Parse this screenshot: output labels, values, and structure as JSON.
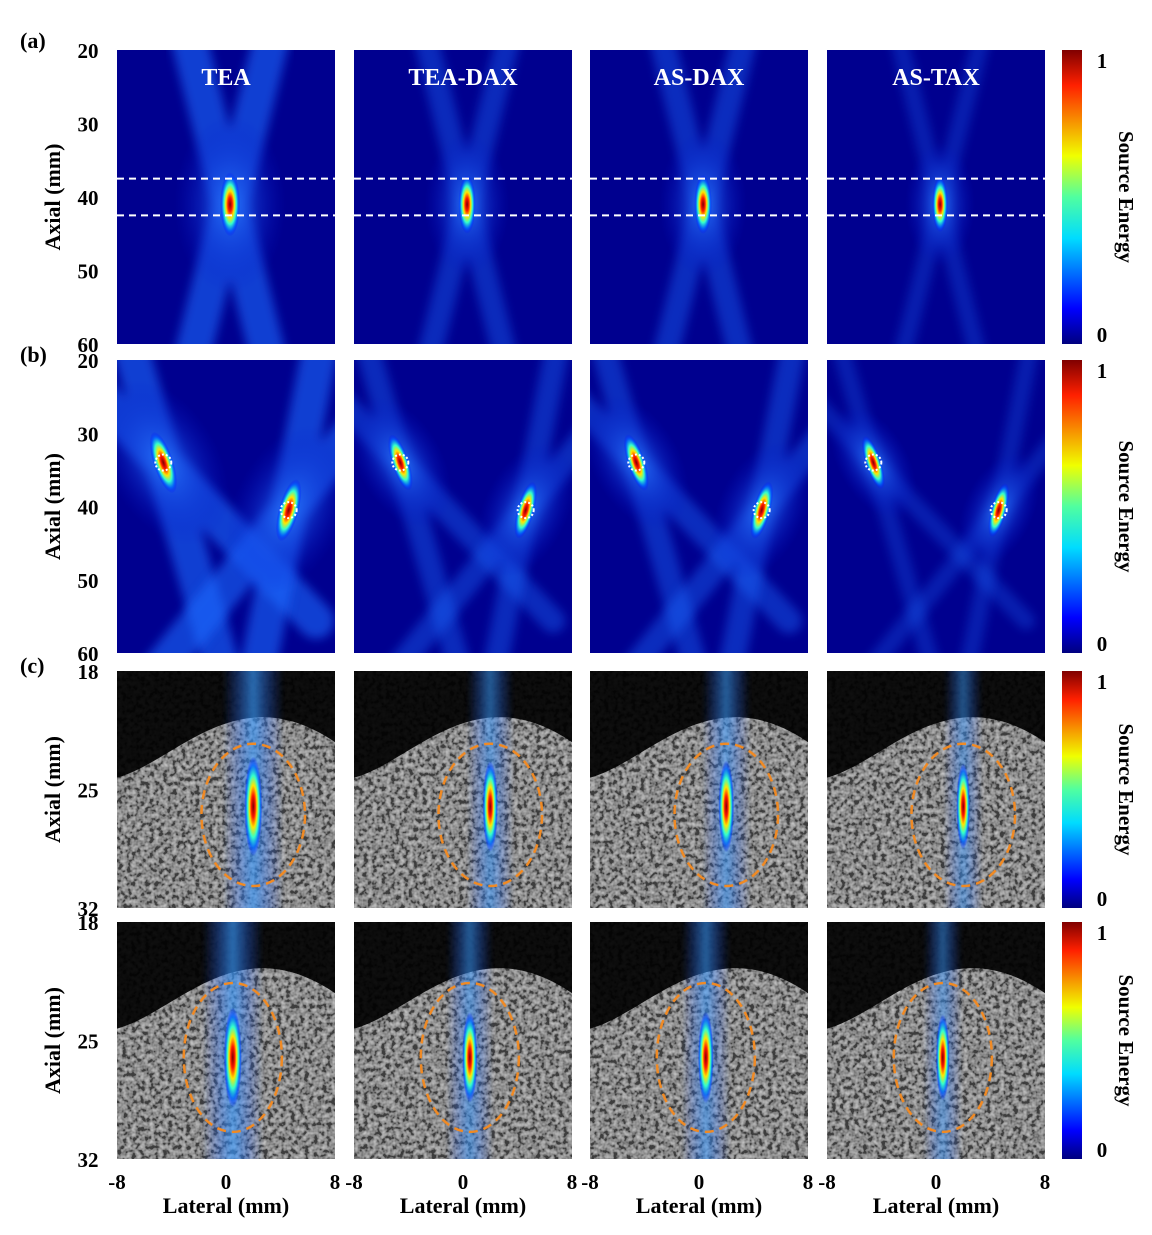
{
  "chart_data": {
    "type": "heatmap",
    "method_titles": [
      "TEA",
      "TEA-DAX",
      "AS-DAX",
      "AS-TAX"
    ],
    "colorbar": {
      "label": "Source Energy",
      "min_label": "0",
      "max_label": "1",
      "range": [
        0,
        1
      ],
      "colormap": "jet"
    },
    "x_axis": {
      "label": "Lateral (mm)",
      "ticks": [
        "-8",
        "0",
        "8"
      ],
      "range": [
        -8,
        8
      ]
    },
    "panels": [
      {
        "id": "a",
        "panel_label": "(a)",
        "background": "simulation",
        "ylabel": "Axial (mm)",
        "y_ticks": [
          "20",
          "30",
          "40",
          "50",
          "60"
        ],
        "ylim": [
          20,
          60
        ],
        "guide_lines_mm": [
          37.5,
          42.5
        ],
        "sources": [
          {
            "x_mm": 0.3,
            "y_mm": 41
          }
        ],
        "spread": [
          1.0,
          0.55,
          0.6,
          0.3
        ]
      },
      {
        "id": "b",
        "panel_label": "(b)",
        "background": "simulation",
        "ylabel": "Axial (mm)",
        "y_ticks": [
          "20",
          "30",
          "40",
          "50",
          "60"
        ],
        "ylim": [
          20,
          60
        ],
        "markers_mm": [
          {
            "x_mm": -4.6,
            "y_mm": 34
          },
          {
            "x_mm": 4.6,
            "y_mm": 40.5
          }
        ],
        "sources": [
          {
            "x_mm": -4.6,
            "y_mm": 34
          },
          {
            "x_mm": 4.6,
            "y_mm": 40.5
          }
        ],
        "spread": [
          1.0,
          0.55,
          0.6,
          0.3
        ]
      },
      {
        "id": "c1",
        "panel_label": "(c)",
        "background": "ultrasound",
        "ylabel": "Axial (mm)",
        "y_ticks": [
          "18",
          "25",
          "32"
        ],
        "ylim": [
          18,
          32
        ],
        "ellipse_mm": {
          "x_mm": 2,
          "y_mm": 26.5,
          "rx_mm": 3.8,
          "ry_mm": 4.2
        },
        "sources": [
          {
            "x_mm": 2,
            "y_mm": 26
          }
        ],
        "spread": [
          1.0,
          0.55,
          0.6,
          0.3
        ]
      },
      {
        "id": "c2",
        "panel_label": "",
        "background": "ultrasound",
        "ylabel": "Axial (mm)",
        "y_ticks": [
          "18",
          "25",
          "32"
        ],
        "ylim": [
          18,
          32
        ],
        "ellipse_mm": {
          "x_mm": 0.5,
          "y_mm": 26,
          "rx_mm": 3.6,
          "ry_mm": 4.4
        },
        "sources": [
          {
            "x_mm": 0.5,
            "y_mm": 26
          }
        ],
        "spread": [
          1.0,
          0.55,
          0.6,
          0.3
        ]
      }
    ]
  }
}
